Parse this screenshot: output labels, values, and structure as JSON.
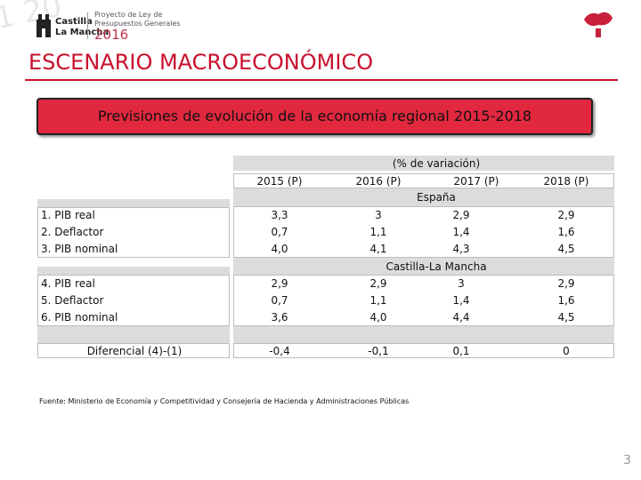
{
  "header": {
    "logo_line1": "Castilla",
    "logo_line2": "La Mancha",
    "caption": "Proyecto de Ley de Presupuestos Generales",
    "year": "2016"
  },
  "title": "ESCENARIO MACROECONÓMICO",
  "banner": "Previsiones de evolución de la economía regional 2015-2018",
  "table": {
    "unit": "(% de variación)",
    "columns": [
      "2015 (P)",
      "2016 (P)",
      "2017 (P)",
      "2018 (P)"
    ],
    "sections": [
      {
        "name": "España",
        "rows": [
          {
            "label": "1. PIB real",
            "values": [
              "3,3",
              "3",
              "2,9",
              "2,9"
            ]
          },
          {
            "label": "2. Deflactor",
            "values": [
              "0,7",
              "1,1",
              "1,4",
              "1,6"
            ]
          },
          {
            "label": "3. PIB nominal",
            "values": [
              "4,0",
              "4,1",
              "4,3",
              "4,5"
            ]
          }
        ]
      },
      {
        "name": "Castilla-La Mancha",
        "rows": [
          {
            "label": "4. PIB real",
            "values": [
              "2,9",
              "2,9",
              "3",
              "2,9"
            ]
          },
          {
            "label": "5. Deflactor",
            "values": [
              "0,7",
              "1,1",
              "1,4",
              "1,6"
            ]
          },
          {
            "label": "6. PIB nominal",
            "values": [
              "3,6",
              "4,0",
              "4,4",
              "4,5"
            ]
          }
        ]
      }
    ],
    "differential": {
      "label": "Diferencial (4)-(1)",
      "values": [
        "-0,4",
        "-0,1",
        "0,1",
        "0"
      ]
    }
  },
  "source": "Fuente: Ministerio de Economía y Competitividad y Consejería de Hacienda y Administraciones Públicas",
  "page_number": "3"
}
